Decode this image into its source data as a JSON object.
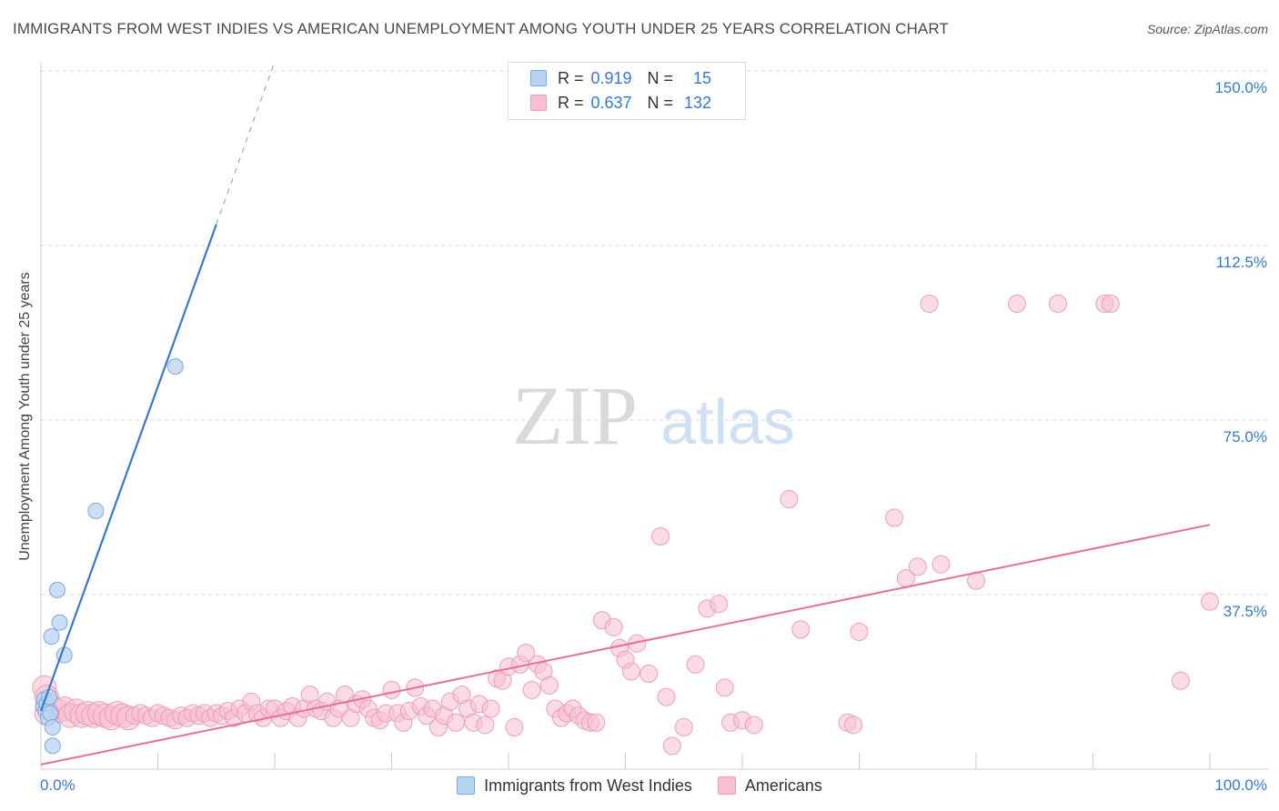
{
  "title": "IMMIGRANTS FROM WEST INDIES VS AMERICAN UNEMPLOYMENT AMONG YOUTH UNDER 25 YEARS CORRELATION CHART",
  "source": "Source: ZipAtlas.com",
  "watermark": {
    "zip": "ZIP",
    "atlas": "atlas"
  },
  "legend_top": [
    {
      "r_label": "R =",
      "r_value": "0.919",
      "n_label": "N =",
      "n_value": "15"
    },
    {
      "r_label": "R =",
      "r_value": "0.637",
      "n_label": "N =",
      "n_value": "132"
    }
  ],
  "legend_bottom": [
    "Immigrants from West Indies",
    "Americans"
  ],
  "colors": {
    "blue_fill": "#b9d3f3",
    "blue_stroke": "#7fa8dc",
    "blue_line": "#3a78c9",
    "pink_fill": "#f7c0cf",
    "pink_stroke": "#eb9fb5",
    "pink_line": "#e76f9a",
    "axis_value_text": "#3a78c9",
    "grid": "#d9d9d9"
  },
  "chart_data": {
    "type": "scatter",
    "title": "IMMIGRANTS FROM WEST INDIES VS AMERICAN UNEMPLOYMENT AMONG YOUTH UNDER 25 YEARS CORRELATION CHART",
    "xlabel": "",
    "ylabel": "Unemployment Among Youth under 25 years",
    "xlim": [
      0,
      100
    ],
    "ylim": [
      0,
      150
    ],
    "x_tick_labels": [
      "0.0%",
      "100.0%"
    ],
    "y_ticks": [
      37.5,
      75.0,
      112.5,
      150.0
    ],
    "y_tick_labels": [
      "37.5%",
      "75.0%",
      "112.5%",
      "150.0%"
    ],
    "series": [
      {
        "name": "Immigrants from West Indies",
        "color": "blue",
        "points": [
          [
            0.2,
            13.5
          ],
          [
            0.3,
            15.0
          ],
          [
            0.4,
            12.5
          ],
          [
            0.5,
            14.0
          ],
          [
            0.6,
            11.0
          ],
          [
            0.7,
            15.5
          ],
          [
            0.8,
            12.0
          ],
          [
            1.0,
            9.0
          ],
          [
            1.0,
            5.0
          ],
          [
            0.9,
            28.5
          ],
          [
            1.4,
            38.5
          ],
          [
            1.6,
            31.5
          ],
          [
            2.0,
            24.5
          ],
          [
            4.7,
            55.5
          ],
          [
            11.5,
            86.5
          ]
        ],
        "trend": {
          "x0": 0,
          "y0": 12.5,
          "x1": 15.0,
          "y1": 117.0,
          "dash_x1": 20.0,
          "dash_y1": 152.0
        }
      },
      {
        "name": "Americans",
        "color": "pink",
        "points": [
          [
            0.3,
            17.5
          ],
          [
            0.5,
            15.5
          ],
          [
            0.8,
            13.5
          ],
          [
            1.5,
            12.5
          ],
          [
            2.0,
            13.0
          ],
          [
            2.5,
            11.5
          ],
          [
            3.0,
            12.5
          ],
          [
            3.5,
            11.5
          ],
          [
            4.0,
            12.0
          ],
          [
            4.5,
            11.5
          ],
          [
            5.0,
            12.0
          ],
          [
            5.5,
            11.5
          ],
          [
            6.0,
            11.0
          ],
          [
            6.5,
            12.0
          ],
          [
            7.0,
            11.5
          ],
          [
            7.5,
            11.0
          ],
          [
            8.0,
            11.5
          ],
          [
            8.5,
            12.0
          ],
          [
            9.0,
            11.5
          ],
          [
            9.5,
            11.0
          ],
          [
            10.0,
            12.0
          ],
          [
            10.5,
            11.5
          ],
          [
            11.0,
            11.0
          ],
          [
            11.5,
            10.5
          ],
          [
            12.0,
            11.5
          ],
          [
            12.5,
            11.0
          ],
          [
            13.0,
            12.0
          ],
          [
            13.5,
            11.5
          ],
          [
            14.0,
            12.0
          ],
          [
            14.5,
            11.0
          ],
          [
            15.0,
            12.0
          ],
          [
            15.5,
            11.5
          ],
          [
            16.0,
            12.5
          ],
          [
            16.5,
            11.0
          ],
          [
            17.0,
            13.0
          ],
          [
            17.5,
            12.0
          ],
          [
            18.0,
            14.5
          ],
          [
            18.5,
            12.0
          ],
          [
            19.0,
            11.0
          ],
          [
            19.5,
            13.0
          ],
          [
            20.0,
            13.0
          ],
          [
            20.5,
            11.0
          ],
          [
            21.0,
            12.5
          ],
          [
            21.5,
            13.5
          ],
          [
            22.0,
            11.0
          ],
          [
            22.5,
            13.0
          ],
          [
            23.0,
            16.0
          ],
          [
            23.5,
            13.0
          ],
          [
            24.0,
            12.5
          ],
          [
            24.5,
            14.5
          ],
          [
            25.0,
            11.0
          ],
          [
            25.5,
            13.0
          ],
          [
            26.0,
            16.0
          ],
          [
            26.5,
            11.0
          ],
          [
            27.0,
            14.0
          ],
          [
            27.5,
            15.0
          ],
          [
            28.0,
            13.0
          ],
          [
            28.5,
            11.0
          ],
          [
            29.0,
            10.5
          ],
          [
            29.5,
            12.0
          ],
          [
            30.0,
            17.0
          ],
          [
            30.5,
            12.0
          ],
          [
            31.0,
            10.0
          ],
          [
            31.5,
            12.5
          ],
          [
            32.0,
            17.5
          ],
          [
            32.5,
            13.5
          ],
          [
            33.0,
            11.5
          ],
          [
            33.5,
            13.0
          ],
          [
            34.0,
            9.0
          ],
          [
            34.5,
            11.5
          ],
          [
            35.0,
            14.5
          ],
          [
            35.5,
            10.0
          ],
          [
            36.0,
            16.0
          ],
          [
            36.5,
            13.0
          ],
          [
            37.0,
            10.0
          ],
          [
            37.5,
            14.0
          ],
          [
            38.0,
            9.5
          ],
          [
            38.5,
            13.0
          ],
          [
            39.0,
            19.5
          ],
          [
            39.5,
            19.0
          ],
          [
            40.0,
            22.0
          ],
          [
            40.5,
            9.0
          ],
          [
            41.0,
            22.5
          ],
          [
            41.5,
            25.0
          ],
          [
            42.0,
            17.0
          ],
          [
            42.5,
            22.5
          ],
          [
            43.0,
            21.0
          ],
          [
            43.5,
            18.0
          ],
          [
            44.0,
            13.0
          ],
          [
            44.5,
            11.0
          ],
          [
            45.0,
            12.0
          ],
          [
            45.5,
            13.0
          ],
          [
            46.0,
            11.5
          ],
          [
            46.5,
            10.5
          ],
          [
            47.0,
            10.0
          ],
          [
            47.5,
            10.0
          ],
          [
            48.0,
            32.0
          ],
          [
            49.0,
            30.5
          ],
          [
            49.5,
            26.0
          ],
          [
            50.0,
            23.5
          ],
          [
            50.5,
            21.0
          ],
          [
            51.0,
            27.0
          ],
          [
            52.0,
            20.5
          ],
          [
            53.0,
            50.0
          ],
          [
            53.5,
            15.5
          ],
          [
            54.0,
            5.0
          ],
          [
            55.0,
            9.0
          ],
          [
            56.0,
            22.5
          ],
          [
            57.0,
            34.5
          ],
          [
            58.0,
            35.5
          ],
          [
            58.5,
            17.5
          ],
          [
            59.0,
            10.0
          ],
          [
            60.0,
            10.5
          ],
          [
            61.0,
            9.5
          ],
          [
            64.0,
            58.0
          ],
          [
            65.0,
            30.0
          ],
          [
            69.0,
            10.0
          ],
          [
            69.5,
            9.5
          ],
          [
            70.0,
            29.5
          ],
          [
            73.0,
            54.0
          ],
          [
            74.0,
            41.0
          ],
          [
            75.0,
            43.5
          ],
          [
            77.0,
            44.0
          ],
          [
            80.0,
            40.5
          ],
          [
            76.0,
            100.0
          ],
          [
            83.5,
            100.0
          ],
          [
            87.0,
            100.0
          ],
          [
            91.0,
            100.0
          ],
          [
            91.5,
            100.0
          ],
          [
            97.5,
            19.0
          ],
          [
            100.0,
            36.0
          ],
          [
            0.5,
            12.0
          ]
        ],
        "trend": {
          "x0": 0,
          "y0": 1.0,
          "x1": 100,
          "y1": 52.5
        }
      }
    ]
  }
}
